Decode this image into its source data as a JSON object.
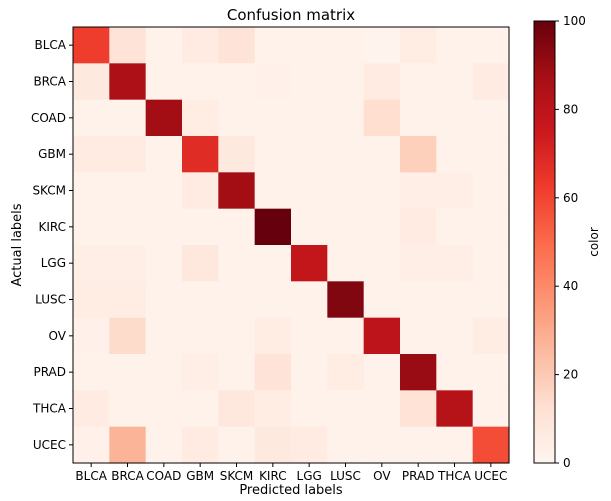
{
  "chart_data": {
    "type": "heatmap",
    "title": "Confusion matrix",
    "xlabel": "Predicted labels",
    "ylabel": "Actual labels",
    "x_categories": [
      "BLCA",
      "BRCA",
      "COAD",
      "GBM",
      "SKCM",
      "KIRC",
      "LGG",
      "LUSC",
      "OV",
      "PRAD",
      "THCA",
      "UCEC"
    ],
    "y_categories": [
      "BLCA",
      "BRCA",
      "COAD",
      "GBM",
      "SKCM",
      "KIRC",
      "LGG",
      "LUSC",
      "OV",
      "PRAD",
      "THCA",
      "UCEC"
    ],
    "values": [
      [
        62,
        10,
        2,
        6,
        10,
        2,
        2,
        2,
        1,
        5,
        2,
        2
      ],
      [
        7,
        85,
        2,
        2,
        2,
        3,
        2,
        2,
        6,
        2,
        2,
        6
      ],
      [
        2,
        2,
        88,
        5,
        2,
        2,
        2,
        2,
        13,
        2,
        2,
        2
      ],
      [
        6,
        6,
        2,
        68,
        7,
        2,
        2,
        2,
        2,
        18,
        2,
        2
      ],
      [
        2,
        2,
        2,
        6,
        88,
        2,
        2,
        2,
        2,
        4,
        4,
        2
      ],
      [
        2,
        2,
        2,
        2,
        2,
        100,
        2,
        2,
        2,
        6,
        2,
        2
      ],
      [
        4,
        4,
        2,
        8,
        2,
        2,
        78,
        2,
        2,
        4,
        4,
        2
      ],
      [
        5,
        5,
        2,
        2,
        2,
        2,
        2,
        95,
        2,
        2,
        2,
        2
      ],
      [
        3,
        14,
        2,
        2,
        2,
        5,
        2,
        2,
        80,
        2,
        2,
        5
      ],
      [
        2,
        2,
        2,
        4,
        2,
        10,
        2,
        5,
        2,
        90,
        2,
        2
      ],
      [
        6,
        2,
        2,
        2,
        8,
        5,
        2,
        2,
        2,
        11,
        82,
        2
      ],
      [
        3,
        27,
        2,
        6,
        2,
        7,
        6,
        2,
        2,
        2,
        2,
        58
      ]
    ],
    "colorbar": {
      "label": "color",
      "min": 0,
      "max": 100,
      "ticks": [
        0,
        20,
        40,
        60,
        80,
        100
      ]
    },
    "colormap": [
      "#fff5f0",
      "#fee0d2",
      "#fcbba1",
      "#fc9272",
      "#fb6a4a",
      "#ef3b2c",
      "#cb181d",
      "#a50f15",
      "#67000d"
    ],
    "grid": false,
    "legend": "none"
  }
}
